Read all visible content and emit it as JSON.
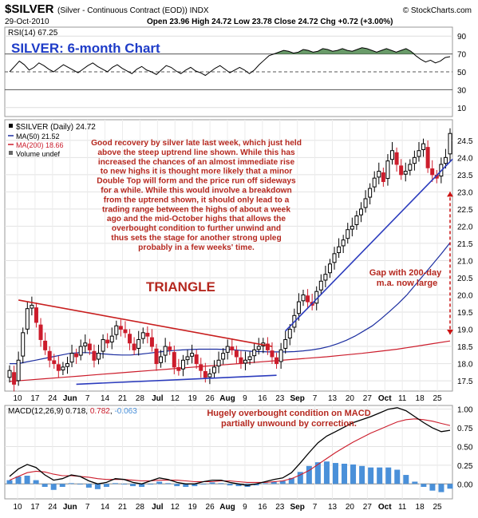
{
  "header": {
    "symbol": "$SILVER",
    "description": "(Silver - Continuous Contract (EOD)) INDX",
    "date": "29-Oct-2010",
    "ohlc": "Open 23.96  High 24.72  Low 23.78  Close 24.72  Volume undef  Chg +0.72 (+3.00%)",
    "ohlc_short": "Open 23.96  High 24.72  Low 23.78  Close 24.72  Chg +0.72 (+3.00%)",
    "brand": "© StockCharts.com"
  },
  "chart_data": [
    {
      "panel": "rsi",
      "type": "line",
      "label": "RSI(14) 67.25",
      "title": "SILVER: 6-month Chart",
      "y_ticks": [
        10,
        30,
        50,
        70,
        90
      ],
      "ylim": [
        0,
        100
      ],
      "reference_lines": [
        30,
        50,
        70
      ],
      "colors": {
        "line": "#000000",
        "overbought_fill": "#4f8a4f",
        "title": "#1e3cc8"
      },
      "values": [
        50,
        56,
        62,
        58,
        52,
        55,
        60,
        57,
        53,
        50,
        54,
        58,
        55,
        52,
        49,
        53,
        57,
        60,
        56,
        53,
        50,
        55,
        58,
        54,
        51,
        48,
        53,
        56,
        52,
        50,
        47,
        52,
        57,
        55,
        51,
        48,
        52,
        55,
        51,
        49,
        46,
        50,
        54,
        57,
        53,
        49,
        52,
        55,
        52,
        48,
        52,
        58,
        63,
        68,
        70,
        72,
        74,
        73,
        71,
        72,
        75,
        74,
        72,
        73,
        76,
        75,
        73,
        74,
        76,
        74,
        73,
        75,
        77,
        76,
        74,
        72,
        74,
        76,
        74,
        72,
        74,
        76,
        73,
        68,
        64,
        61,
        63,
        60,
        62,
        66,
        67
      ]
    },
    {
      "panel": "price",
      "type": "line",
      "legend": [
        "$SILVER (Daily) 24.72",
        "MA(50) 21.52",
        "MA(200) 18.66",
        "Volume undef"
      ],
      "y_ticks": [
        17.5,
        18.0,
        18.5,
        19.0,
        19.5,
        20.0,
        20.5,
        21.0,
        21.5,
        22.0,
        22.5,
        23.0,
        23.5,
        24.0,
        24.5
      ],
      "ylim": [
        17.2,
        25.1
      ],
      "x_tick_labels": [
        "10",
        "17",
        "24",
        "Jun",
        "7",
        "14",
        "21",
        "28",
        "Jul",
        "12",
        "19",
        "26",
        "Aug",
        "9",
        "16",
        "23",
        "Sep",
        "7",
        "13",
        "20",
        "27",
        "Oct",
        "11",
        "18",
        "25"
      ],
      "colors": {
        "up": "#000000",
        "down": "#cc1d2c",
        "ma50": "#1c2ea0",
        "ma200": "#cc1d2c",
        "trendline": "#2b3bbd"
      },
      "close": [
        17.8,
        17.4,
        18.1,
        18.9,
        19.6,
        19.7,
        19.2,
        18.7,
        18.4,
        18.1,
        18.0,
        17.8,
        17.9,
        18.0,
        18.3,
        18.2,
        18.5,
        18.6,
        18.4,
        18.1,
        18.3,
        18.7,
        18.6,
        18.8,
        19.1,
        19.0,
        18.9,
        18.6,
        18.4,
        18.7,
        18.9,
        18.8,
        18.5,
        18.0,
        18.2,
        18.5,
        18.4,
        17.9,
        17.8,
        18.1,
        18.2,
        18.3,
        18.0,
        17.8,
        17.6,
        17.7,
        17.9,
        18.1,
        18.3,
        18.5,
        18.4,
        18.2,
        18.0,
        18.1,
        18.2,
        18.4,
        18.5,
        18.6,
        18.4,
        18.2,
        18.0,
        18.4,
        18.7,
        19.0,
        19.4,
        19.8,
        20.0,
        19.8,
        19.7,
        20.1,
        20.4,
        20.6,
        20.9,
        21.2,
        21.4,
        21.6,
        21.9,
        22.0,
        22.3,
        22.5,
        22.8,
        23.1,
        23.4,
        23.6,
        23.3,
        23.9,
        24.2,
        23.8,
        23.5,
        23.6,
        23.8,
        24.0,
        24.2,
        24.4,
        23.7,
        23.5,
        23.4,
        23.8,
        24.0,
        24.7
      ],
      "ma50": [
        18.0,
        18.0,
        18.05,
        18.1,
        18.15,
        18.2,
        18.25,
        18.3,
        18.32,
        18.32,
        18.3,
        18.28,
        18.26,
        18.25,
        18.25,
        18.27,
        18.3,
        18.33,
        18.36,
        18.38,
        18.4,
        18.41,
        18.42,
        18.42,
        18.42,
        18.41,
        18.4,
        18.38,
        18.36,
        18.35,
        18.34,
        18.34,
        18.34,
        18.35,
        18.37,
        18.4,
        18.44,
        18.5,
        18.58,
        18.68,
        18.8,
        18.95,
        19.1,
        19.3,
        19.52,
        19.75,
        20.0,
        20.3,
        20.6,
        20.9,
        21.2,
        21.52
      ],
      "ma200": [
        17.48,
        17.52,
        17.56,
        17.6,
        17.64,
        17.68,
        17.72,
        17.76,
        17.8,
        17.84,
        17.88,
        17.92,
        17.96,
        18.0,
        18.04,
        18.08,
        18.12,
        18.16,
        18.2,
        18.25,
        18.3,
        18.36,
        18.42,
        18.5,
        18.58,
        18.66
      ],
      "annotations": {
        "commentary": [
          "Good recovery by silver late last week, which just held",
          "above the steep uptrend line shown. While this has",
          "increased the chances of an almost immediate rise",
          "to new highs it is thought more likely that a minor",
          "Double Top will form and the price run off sideways",
          "for a while. While this would involve a breakdown",
          "from the uptrend shown, it should only lead to a",
          "trading range between the highs of about a week",
          "ago and the mid-October highs that allows the",
          "overbought condition to further unwind and",
          "thus sets the stage for another strong upleg",
          "probably in a few weeks' time."
        ],
        "triangle": "TRIANGLE",
        "gap": [
          "Gap with 200-day",
          "m.a. now large"
        ],
        "colors": {
          "text": "#b5281f",
          "triangle_upper": "#c81e1e",
          "triangle_lower": "#2b3bbd",
          "arrow": "#cc1111"
        }
      }
    },
    {
      "panel": "macd",
      "type": "line",
      "label": "MACD(12,26,9) 0.718, 0.782, -0.063",
      "label_parts": {
        "name": "MACD(12,26,9)",
        "macd": "0.718",
        "signal": "0.782",
        "hist": "-0.063"
      },
      "y_ticks": [
        "1.00",
        "0.75",
        "0.50",
        "0.25",
        "0.00"
      ],
      "ylim": [
        -0.2,
        1.05
      ],
      "x_tick_labels": [
        "10",
        "17",
        "24",
        "Jun",
        "7",
        "14",
        "21",
        "28",
        "Jul",
        "12",
        "19",
        "26",
        "Aug",
        "9",
        "16",
        "23",
        "Sep",
        "7",
        "13",
        "20",
        "27",
        "Oct",
        "11",
        "18",
        "25"
      ],
      "annotation": [
        "Hugely overbought condition on MACD",
        "partially unwound by correction."
      ],
      "colors": {
        "macd": "#000000",
        "signal": "#cc1d2c",
        "hist": "#4a90d9",
        "annotation": "#b5281f"
      },
      "macd": [
        0.1,
        0.2,
        0.26,
        0.22,
        0.12,
        0.05,
        0.07,
        0.12,
        0.1,
        0.04,
        0.0,
        0.02,
        0.07,
        0.06,
        0.02,
        0.0,
        0.04,
        0.08,
        0.06,
        0.02,
        0.0,
        0.0,
        0.03,
        0.05,
        0.05,
        0.02,
        0.0,
        -0.02,
        0.0,
        0.03,
        0.06,
        0.08,
        0.15,
        0.28,
        0.42,
        0.55,
        0.64,
        0.7,
        0.76,
        0.82,
        0.86,
        0.9,
        0.95,
        1.0,
        1.02,
        0.98,
        0.9,
        0.82,
        0.75,
        0.7,
        0.718
      ],
      "signal": [
        0.05,
        0.1,
        0.15,
        0.17,
        0.16,
        0.13,
        0.11,
        0.11,
        0.1,
        0.09,
        0.07,
        0.06,
        0.06,
        0.06,
        0.05,
        0.04,
        0.04,
        0.05,
        0.05,
        0.05,
        0.04,
        0.03,
        0.03,
        0.03,
        0.04,
        0.04,
        0.03,
        0.02,
        0.02,
        0.02,
        0.03,
        0.04,
        0.07,
        0.12,
        0.18,
        0.26,
        0.34,
        0.42,
        0.49,
        0.56,
        0.62,
        0.68,
        0.73,
        0.78,
        0.83,
        0.86,
        0.87,
        0.86,
        0.84,
        0.81,
        0.782
      ]
    }
  ]
}
